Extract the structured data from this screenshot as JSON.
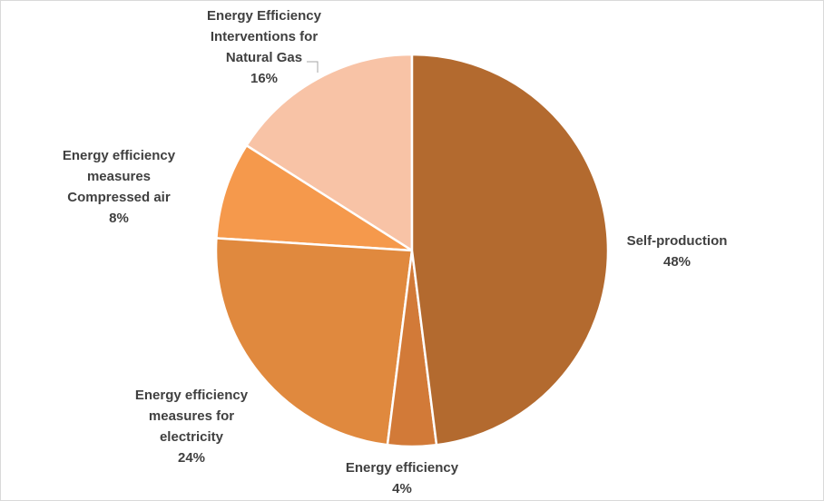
{
  "chart_data": {
    "type": "pie",
    "categories": [
      "Self-production",
      "Energy efficiency",
      "Energy efficiency measures for electricity",
      "Energy efficiency measures Compressed air",
      "Energy Efficiency Interventions for Natural Gas"
    ],
    "values": [
      48,
      4,
      24,
      8,
      16
    ],
    "value_labels": [
      "48%",
      "4%",
      "24%",
      "8%",
      "16%"
    ],
    "colors": [
      "#b36a2f",
      "#d27a38",
      "#e0893e",
      "#f5994c",
      "#f8c3a6"
    ]
  }
}
